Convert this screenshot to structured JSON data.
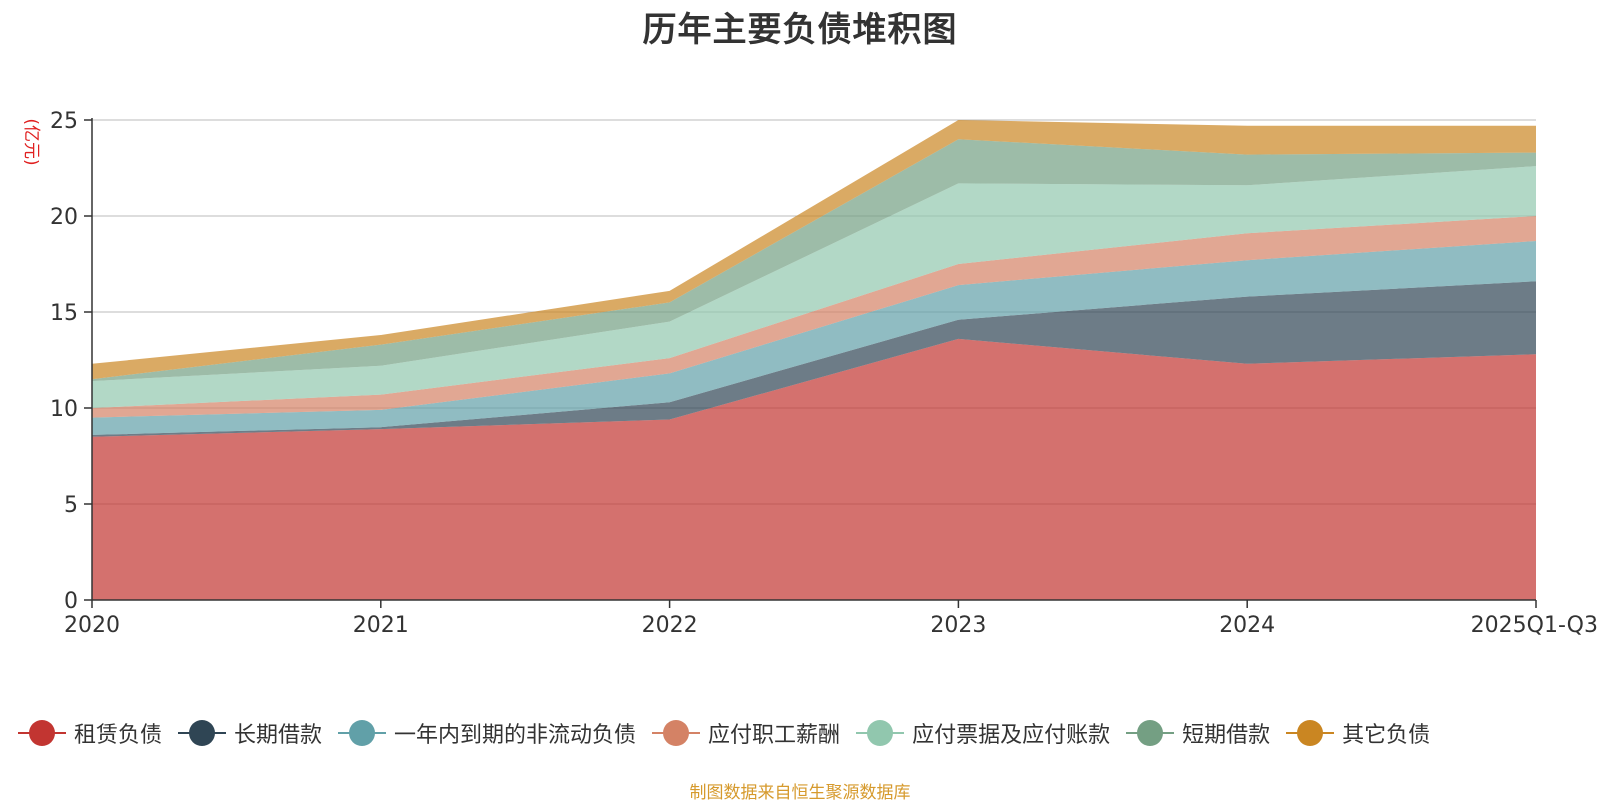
{
  "chart_data": {
    "type": "area",
    "stacked": true,
    "title": "历年主要负债堆积图",
    "ylabel": "(亿元)",
    "xlabel": "",
    "ylim": [
      0,
      25
    ],
    "yticks": [
      0,
      5,
      10,
      15,
      20,
      25
    ],
    "categories": [
      "2020",
      "2021",
      "2022",
      "2023",
      "2024",
      "2025Q1-Q3"
    ],
    "grid": true,
    "legend_position": "bottom",
    "series": [
      {
        "name": "租赁负债",
        "color": "#c23531",
        "values": [
          8.5,
          8.9,
          9.4,
          13.6,
          12.3,
          12.8
        ]
      },
      {
        "name": "长期借款",
        "color": "#2f4554",
        "values": [
          0.1,
          0.1,
          0.9,
          1.0,
          3.5,
          3.8
        ]
      },
      {
        "name": "一年内到期的非流动负债",
        "color": "#61a0a8",
        "values": [
          0.9,
          0.9,
          1.5,
          1.8,
          1.9,
          2.1
        ]
      },
      {
        "name": "应付职工薪酬",
        "color": "#d48265",
        "values": [
          0.5,
          0.8,
          0.8,
          1.1,
          1.4,
          1.3
        ]
      },
      {
        "name": "应付票据及应付账款",
        "color": "#91c7ae",
        "values": [
          1.4,
          1.5,
          1.9,
          4.2,
          2.5,
          2.6
        ]
      },
      {
        "name": "短期借款",
        "color": "#749f83",
        "values": [
          0.1,
          1.1,
          1.0,
          2.3,
          1.6,
          0.7
        ]
      },
      {
        "name": "其它负债",
        "color": "#ca8622",
        "values": [
          0.8,
          0.5,
          0.6,
          1.0,
          1.5,
          1.4
        ]
      }
    ]
  },
  "footer": {
    "source": "制图数据来自恒生聚源数据库"
  }
}
